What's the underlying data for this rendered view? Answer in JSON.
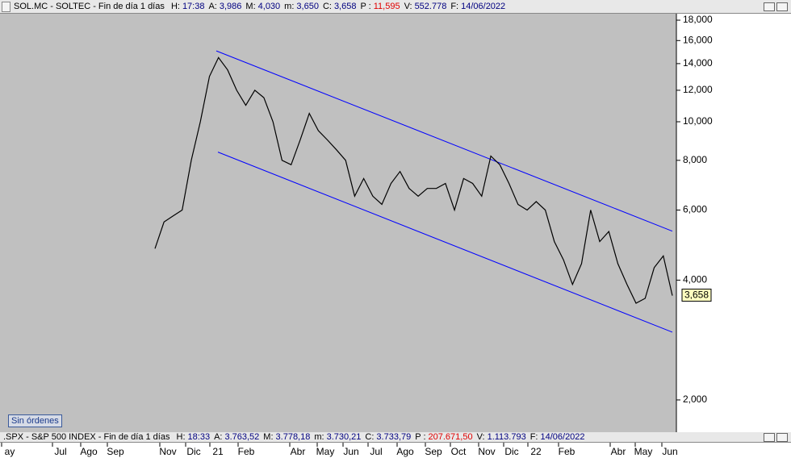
{
  "top_header": {
    "symbol": "SOL.MC - SOLTEC - Fin de día 1 días",
    "fields": [
      {
        "label": "H:",
        "value": "17:38",
        "color": "#000080"
      },
      {
        "label": "A:",
        "value": "3,986",
        "color": "#000080"
      },
      {
        "label": "M:",
        "value": "4,030",
        "color": "#000080"
      },
      {
        "label": "m:",
        "value": "3,650",
        "color": "#000080"
      },
      {
        "label": "C:",
        "value": "3,658",
        "color": "#000080"
      },
      {
        "label": "P :",
        "value": "11,595",
        "color": "#e00000"
      },
      {
        "label": "V:",
        "value": "552.778",
        "color": "#000080"
      },
      {
        "label": "F:",
        "value": "14/06/2022",
        "color": "#000080"
      }
    ]
  },
  "chart_data": {
    "type": "line",
    "log_scale": true,
    "color": "#000000",
    "values": [
      4.8,
      5.6,
      5.8,
      6.0,
      8.0,
      10.0,
      13.0,
      14.5,
      13.5,
      12.0,
      11.0,
      12.0,
      11.5,
      10.0,
      8.0,
      7.8,
      9.0,
      10.5,
      9.5,
      9.0,
      8.5,
      8.0,
      6.5,
      7.2,
      6.5,
      6.2,
      7.0,
      7.5,
      6.8,
      6.5,
      6.8,
      6.8,
      7.0,
      6.0,
      7.2,
      7.0,
      6.5,
      8.2,
      7.8,
      7.0,
      6.2,
      6.0,
      6.3,
      6.0,
      5.0,
      4.5,
      3.9,
      4.4,
      6.0,
      5.0,
      5.3,
      4.4,
      3.9,
      3.5,
      3.6,
      4.3,
      4.6,
      3.658
    ],
    "last_value_label": "3,658",
    "trendlines": [
      {
        "color": "#0000ff",
        "values": [
          15.07,
          5.31
        ]
      },
      {
        "color": "#0000ff",
        "values": [
          8.39,
          2.96
        ]
      }
    ],
    "ylim": [
      1.667,
      18.6
    ],
    "yticks": [
      {
        "value": 2,
        "label": "2,000"
      },
      {
        "value": 4,
        "label": "4,000"
      },
      {
        "value": 6,
        "label": "6,000"
      },
      {
        "value": 8,
        "label": "8,000"
      },
      {
        "value": 10,
        "label": "10,000"
      },
      {
        "value": 12,
        "label": "12,000"
      },
      {
        "value": 14,
        "label": "14,000"
      },
      {
        "value": 16,
        "label": "16,000"
      },
      {
        "value": 18,
        "label": "18,000"
      }
    ],
    "xtick_labels": [
      "ay",
      "Jul",
      "Ago",
      "Sep",
      "Nov",
      "Dic",
      "21",
      "Feb",
      "Abr",
      "May",
      "Jun",
      "Jul",
      "Ago",
      "Sep",
      "Oct",
      "Nov",
      "Dic",
      "22",
      "Feb",
      "Abr",
      "May",
      "Jun"
    ]
  },
  "orders_button": "Sin órdenes",
  "bottom_header": {
    "symbol": ".SPX - S&P 500 INDEX - Fin de día 1 días",
    "fields": [
      {
        "label": "H:",
        "value": "18:33",
        "color": "#000080"
      },
      {
        "label": "A:",
        "value": "3.763,52",
        "color": "#000080"
      },
      {
        "label": "M:",
        "value": "3.778,18",
        "color": "#000080"
      },
      {
        "label": "m:",
        "value": "3.730,21",
        "color": "#000080"
      },
      {
        "label": "C:",
        "value": "3.733,79",
        "color": "#000080"
      },
      {
        "label": "P :",
        "value": "207.671,50",
        "color": "#e00000"
      },
      {
        "label": "V:",
        "value": "1.113.793",
        "color": "#000080"
      },
      {
        "label": "F:",
        "value": "14/06/2022",
        "color": "#000080"
      }
    ]
  }
}
